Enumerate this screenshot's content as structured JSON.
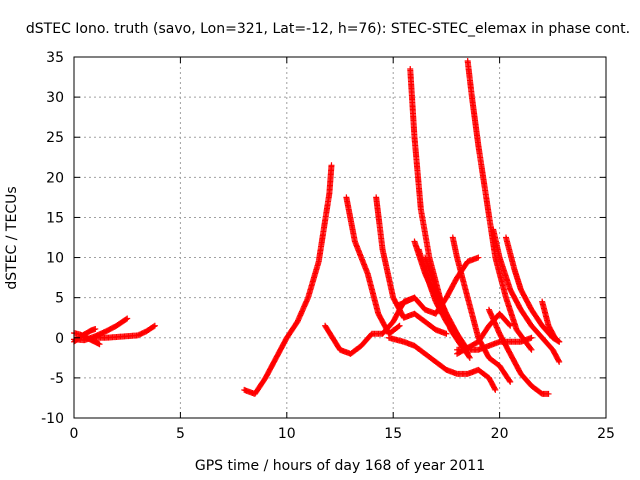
{
  "chart_data": {
    "type": "scatter",
    "title": "dSTEC Iono. truth (savo, Lon=321, Lat=-12, h=76): STEC-STEC_elemax in phase cont.",
    "xlabel": "GPS time / hours of day 168 of year 2011",
    "ylabel": "dSTEC  / TECUs",
    "xlim": [
      0,
      25
    ],
    "ylim": [
      -10,
      35
    ],
    "xticks": [
      0,
      5,
      10,
      15,
      20,
      25
    ],
    "yticks": [
      -10,
      -5,
      0,
      5,
      10,
      15,
      20,
      25,
      30,
      35
    ],
    "xtick_labels": [
      "0",
      "5",
      "10",
      "15",
      "20",
      "25"
    ],
    "ytick_labels": [
      "-10",
      "-5",
      "0",
      "5",
      "10",
      "15",
      "20",
      "25",
      "30",
      "35"
    ],
    "grid": true,
    "marker": "plus",
    "color": "#ff0000",
    "series": [
      {
        "x": [
          0.0,
          0.3,
          0.6,
          0.9,
          1.2
        ],
        "y": [
          0.6,
          0.4,
          0.0,
          -0.4,
          -0.8
        ]
      },
      {
        "x": [
          0.0,
          0.2,
          0.4,
          0.6,
          0.8,
          1.0
        ],
        "y": [
          -0.5,
          -0.1,
          0.3,
          0.6,
          0.9,
          1.1
        ]
      },
      {
        "x": [
          0.0,
          0.5,
          1.0,
          1.5,
          2.0,
          2.5
        ],
        "y": [
          -0.2,
          -0.3,
          0.2,
          0.8,
          1.5,
          2.4
        ]
      },
      {
        "x": [
          1.0,
          1.5,
          2.0,
          2.5,
          3.0,
          3.4,
          3.8
        ],
        "y": [
          0.0,
          0.0,
          0.1,
          0.2,
          0.3,
          0.8,
          1.5
        ]
      },
      {
        "x": [
          8.0,
          8.5,
          9.0,
          9.5,
          10.0,
          10.5,
          11.0,
          11.5,
          12.0,
          12.1
        ],
        "y": [
          -6.5,
          -7.0,
          -5.0,
          -2.5,
          0.0,
          2.0,
          5.0,
          9.5,
          18.0,
          21.5
        ]
      },
      {
        "x": [
          11.8,
          12.5,
          13.0,
          13.5,
          14.0,
          14.5,
          15.0,
          15.5,
          16.0
        ],
        "y": [
          1.5,
          -1.5,
          -2.0,
          -1.0,
          0.5,
          0.5,
          2.0,
          4.5,
          5.0
        ]
      },
      {
        "x": [
          12.8,
          13.2,
          13.8,
          14.3,
          14.8,
          15.3
        ],
        "y": [
          17.5,
          12.0,
          8.0,
          3.0,
          0.5,
          1.5
        ]
      },
      {
        "x": [
          14.2,
          14.5,
          15.0,
          15.5,
          16.0,
          16.5,
          17.0,
          17.5
        ],
        "y": [
          17.5,
          11.0,
          5.0,
          2.5,
          3.0,
          2.0,
          1.0,
          0.5
        ]
      },
      {
        "x": [
          15.8,
          16.0,
          16.3,
          16.7,
          17.2,
          17.7,
          18.2,
          18.5
        ],
        "y": [
          33.5,
          25.0,
          16.0,
          10.0,
          5.0,
          1.0,
          -1.0,
          -2.0
        ]
      },
      {
        "x": [
          16.0,
          16.5,
          17.0,
          17.5,
          18.0,
          18.5
        ],
        "y": [
          12.0,
          8.0,
          5.0,
          2.5,
          0.5,
          -1.5
        ]
      },
      {
        "x": [
          16.2,
          16.6,
          17.0,
          17.5,
          18.0,
          18.6
        ],
        "y": [
          11.0,
          7.5,
          4.5,
          2.0,
          0.0,
          -2.5
        ]
      },
      {
        "x": [
          16.5,
          17.0,
          17.5,
          18.0,
          18.5
        ],
        "y": [
          10.0,
          6.0,
          3.0,
          0.5,
          -2.0
        ]
      },
      {
        "x": [
          14.8,
          15.5,
          16.0,
          16.5,
          17.0,
          17.5,
          18.0,
          18.5,
          19.0,
          19.5,
          19.8
        ],
        "y": [
          0.0,
          -0.5,
          -1.0,
          -2.0,
          -3.0,
          -4.0,
          -4.5,
          -4.5,
          -4.0,
          -5.0,
          -6.5
        ]
      },
      {
        "x": [
          15.2,
          16.0,
          16.5,
          17.0,
          17.5,
          18.0,
          18.5,
          19.0
        ],
        "y": [
          4.0,
          5.0,
          3.5,
          3.0,
          5.0,
          7.5,
          9.5,
          10.0
        ]
      },
      {
        "x": [
          17.8,
          18.0,
          18.5,
          19.0,
          19.5,
          20.0,
          20.5
        ],
        "y": [
          12.5,
          10.0,
          5.0,
          0.0,
          -2.5,
          -3.5,
          -5.5
        ]
      },
      {
        "x": [
          18.5,
          18.7,
          19.0,
          19.4,
          19.8,
          20.3,
          20.8,
          21.5
        ],
        "y": [
          34.5,
          30.0,
          24.0,
          17.0,
          10.0,
          5.0,
          1.0,
          -1.5
        ]
      },
      {
        "x": [
          18.0,
          19.0,
          20.0,
          21.0,
          21.5
        ],
        "y": [
          -1.5,
          -1.5,
          -0.5,
          -0.5,
          0.0
        ]
      },
      {
        "x": [
          19.7,
          20.0,
          20.5,
          21.0,
          21.5,
          22.0,
          22.5,
          22.8
        ],
        "y": [
          13.5,
          10.0,
          6.0,
          3.5,
          1.5,
          0.0,
          -1.5,
          -3.0
        ]
      },
      {
        "x": [
          20.3,
          20.7,
          21.0,
          21.5,
          22.0,
          22.5,
          22.8
        ],
        "y": [
          12.5,
          8.5,
          6.0,
          3.5,
          1.5,
          0.0,
          -0.5
        ]
      },
      {
        "x": [
          19.5,
          20.0,
          20.5,
          21.0,
          21.5,
          22.0,
          22.3
        ],
        "y": [
          3.5,
          0.5,
          -2.0,
          -4.5,
          -6.0,
          -7.0,
          -7.0
        ]
      },
      {
        "x": [
          18.0,
          19.0,
          19.5,
          20.0,
          20.5
        ],
        "y": [
          -2.0,
          -0.5,
          1.5,
          3.0,
          1.5
        ]
      },
      {
        "x": [
          22.0,
          22.3,
          22.6,
          22.8
        ],
        "y": [
          4.5,
          1.5,
          0.0,
          -0.5
        ]
      }
    ]
  }
}
